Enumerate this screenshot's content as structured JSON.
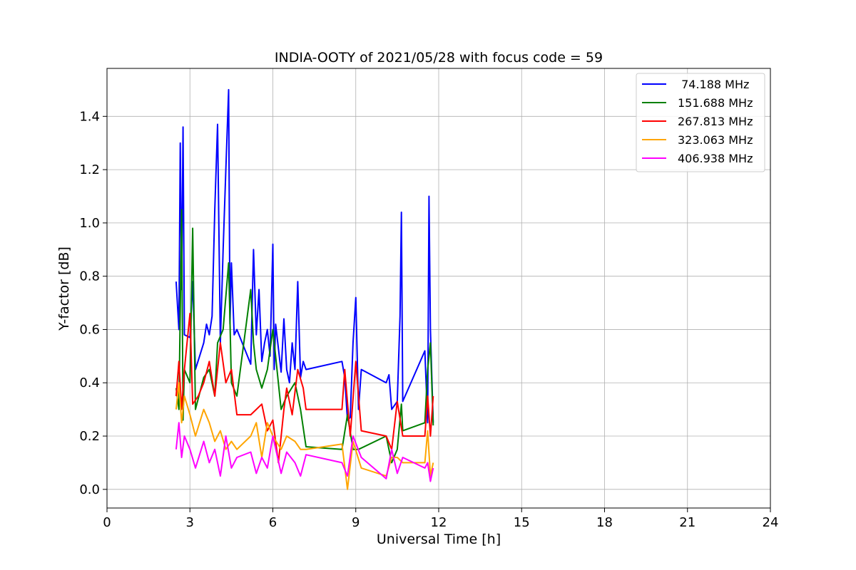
{
  "chart_data": {
    "type": "line",
    "title": "INDIA-OOTY of 2021/05/28 with focus code = 59",
    "xlabel": "Universal Time [h]",
    "ylabel": "Y-factor [dB]",
    "xlim": [
      0,
      24
    ],
    "ylim": [
      -0.07,
      1.58
    ],
    "xticks": [
      0,
      3,
      6,
      9,
      12,
      15,
      18,
      21,
      24
    ],
    "xtick_labels": [
      "0",
      "3",
      "6",
      "9",
      "12",
      "15",
      "18",
      "21",
      "24"
    ],
    "yticks": [
      0.0,
      0.2,
      0.4,
      0.6,
      0.8,
      1.0,
      1.2,
      1.4
    ],
    "ytick_labels": [
      "0.0",
      "0.2",
      "0.4",
      "0.6",
      "0.8",
      "1.0",
      "1.2",
      "1.4"
    ],
    "grid": true,
    "legend_position": "top-right",
    "series": [
      {
        "name": " 74.188 MHz",
        "color": "#0000ff",
        "x": [
          2.5,
          2.6,
          2.65,
          2.7,
          2.75,
          2.8,
          3.0,
          3.1,
          3.2,
          3.5,
          3.6,
          3.7,
          3.8,
          3.9,
          4.0,
          4.1,
          4.2,
          4.3,
          4.4,
          4.45,
          4.5,
          4.6,
          4.7,
          5.2,
          5.3,
          5.4,
          5.5,
          5.6,
          5.7,
          5.8,
          5.9,
          6.0,
          6.05,
          6.1,
          6.3,
          6.4,
          6.5,
          6.6,
          6.7,
          6.8,
          6.9,
          7.0,
          7.1,
          7.2,
          8.5,
          8.6,
          8.7,
          8.8,
          8.9,
          9.0,
          9.1,
          9.2,
          10.1,
          10.2,
          10.3,
          10.5,
          10.6,
          10.65,
          10.7,
          11.5,
          11.6,
          11.65,
          11.7,
          11.8
        ],
        "y": [
          0.78,
          0.6,
          1.3,
          0.75,
          1.36,
          0.58,
          0.57,
          0.78,
          0.45,
          0.55,
          0.62,
          0.58,
          0.65,
          1.05,
          1.37,
          0.55,
          0.9,
          1.2,
          1.5,
          0.62,
          0.85,
          0.58,
          0.6,
          0.47,
          0.9,
          0.58,
          0.75,
          0.48,
          0.55,
          0.6,
          0.5,
          0.92,
          0.45,
          0.62,
          0.44,
          0.64,
          0.45,
          0.4,
          0.55,
          0.45,
          0.78,
          0.42,
          0.48,
          0.45,
          0.48,
          0.42,
          0.26,
          0.27,
          0.55,
          0.72,
          0.3,
          0.45,
          0.4,
          0.43,
          0.3,
          0.33,
          0.65,
          1.04,
          0.33,
          0.52,
          0.25,
          1.1,
          0.6,
          0.25
        ]
      },
      {
        "name": "151.688 MHz",
        "color": "#008000",
        "x": [
          2.5,
          2.6,
          2.7,
          2.75,
          2.8,
          3.0,
          3.1,
          3.2,
          3.5,
          3.7,
          3.9,
          4.0,
          4.2,
          4.4,
          4.5,
          4.7,
          5.2,
          5.3,
          5.4,
          5.6,
          5.8,
          6.0,
          6.3,
          6.5,
          6.8,
          7.0,
          7.2,
          8.5,
          8.7,
          8.9,
          9.1,
          10.1,
          10.3,
          10.5,
          10.65,
          10.7,
          11.5,
          11.6,
          11.7,
          11.8
        ],
        "y": [
          0.38,
          0.3,
          1.05,
          0.26,
          0.45,
          0.4,
          0.98,
          0.3,
          0.42,
          0.45,
          0.35,
          0.55,
          0.6,
          0.85,
          0.4,
          0.35,
          0.75,
          0.55,
          0.45,
          0.38,
          0.45,
          0.6,
          0.3,
          0.35,
          0.4,
          0.3,
          0.16,
          0.15,
          0.28,
          0.15,
          0.15,
          0.2,
          0.1,
          0.15,
          0.32,
          0.22,
          0.25,
          0.45,
          0.55,
          0.24
        ]
      },
      {
        "name": "267.813 MHz",
        "color": "#ff0000",
        "x": [
          2.5,
          2.6,
          2.7,
          2.8,
          3.0,
          3.1,
          3.3,
          3.5,
          3.7,
          3.9,
          4.1,
          4.3,
          4.5,
          4.7,
          5.2,
          5.4,
          5.6,
          5.8,
          6.0,
          6.2,
          6.4,
          6.5,
          6.7,
          6.9,
          7.1,
          7.2,
          8.5,
          8.6,
          8.8,
          9.0,
          9.2,
          10.1,
          10.3,
          10.5,
          10.7,
          11.5,
          11.6,
          11.7,
          11.8
        ],
        "y": [
          0.35,
          0.48,
          0.3,
          0.45,
          0.66,
          0.32,
          0.35,
          0.4,
          0.48,
          0.35,
          0.55,
          0.4,
          0.45,
          0.28,
          0.28,
          0.3,
          0.32,
          0.22,
          0.26,
          0.1,
          0.3,
          0.38,
          0.28,
          0.45,
          0.38,
          0.3,
          0.3,
          0.45,
          0.2,
          0.48,
          0.22,
          0.2,
          0.15,
          0.33,
          0.2,
          0.2,
          0.35,
          0.2,
          0.35
        ]
      },
      {
        "name": "323.063 MHz",
        "color": "#ffa500",
        "x": [
          2.5,
          2.6,
          2.7,
          2.8,
          3.0,
          3.2,
          3.5,
          3.7,
          3.9,
          4.1,
          4.3,
          4.5,
          4.7,
          5.2,
          5.4,
          5.6,
          5.8,
          6.0,
          6.3,
          6.5,
          6.8,
          7.0,
          7.2,
          8.5,
          8.7,
          8.9,
          9.2,
          10.1,
          10.3,
          10.5,
          10.7,
          11.5,
          11.6,
          11.7,
          11.8
        ],
        "y": [
          0.3,
          0.4,
          0.25,
          0.35,
          0.28,
          0.2,
          0.3,
          0.25,
          0.18,
          0.22,
          0.15,
          0.18,
          0.15,
          0.2,
          0.25,
          0.12,
          0.25,
          0.2,
          0.15,
          0.2,
          0.18,
          0.15,
          0.15,
          0.17,
          0.0,
          0.18,
          0.08,
          0.05,
          0.12,
          0.12,
          0.1,
          0.1,
          0.22,
          0.05,
          0.1
        ]
      },
      {
        "name": "406.938 MHz",
        "color": "#ff00ff",
        "x": [
          2.5,
          2.6,
          2.7,
          2.8,
          3.0,
          3.2,
          3.5,
          3.7,
          3.9,
          4.1,
          4.3,
          4.5,
          4.7,
          5.2,
          5.4,
          5.6,
          5.8,
          6.0,
          6.3,
          6.5,
          6.8,
          7.0,
          7.2,
          8.5,
          8.7,
          8.9,
          9.2,
          10.1,
          10.3,
          10.5,
          10.7,
          11.5,
          11.6,
          11.7,
          11.8
        ],
        "y": [
          0.15,
          0.25,
          0.12,
          0.2,
          0.15,
          0.08,
          0.18,
          0.1,
          0.15,
          0.05,
          0.2,
          0.08,
          0.12,
          0.14,
          0.06,
          0.12,
          0.08,
          0.2,
          0.06,
          0.14,
          0.1,
          0.05,
          0.13,
          0.1,
          0.05,
          0.2,
          0.12,
          0.04,
          0.15,
          0.06,
          0.12,
          0.08,
          0.1,
          0.03,
          0.08
        ]
      }
    ]
  }
}
